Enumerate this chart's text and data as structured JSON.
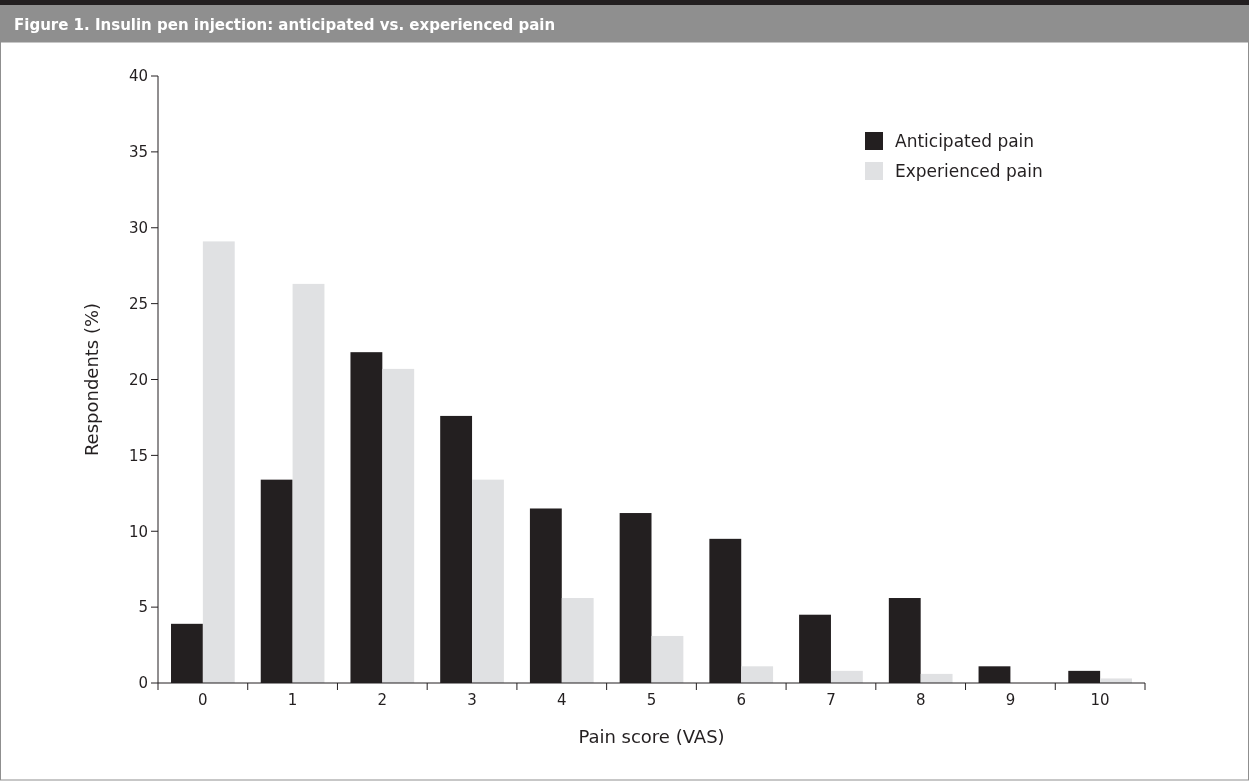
{
  "chart_data": {
    "type": "bar",
    "title": "Figure 1. Insulin pen injection: anticipated vs. experienced pain",
    "xlabel": "Pain score (VAS)",
    "ylabel": "Respondents (%)",
    "categories": [
      "0",
      "1",
      "2",
      "3",
      "4",
      "5",
      "6",
      "7",
      "8",
      "9",
      "10"
    ],
    "series": [
      {
        "name": "Anticipated pain",
        "color": "#231f20",
        "values": [
          3.9,
          13.4,
          21.8,
          17.6,
          11.5,
          11.2,
          9.5,
          4.5,
          5.6,
          1.1,
          0.8
        ]
      },
      {
        "name": "Experienced pain",
        "color": "#e0e1e3",
        "values": [
          29.1,
          26.3,
          20.7,
          13.4,
          5.6,
          3.1,
          1.1,
          0.8,
          0.6,
          0,
          0.3
        ]
      }
    ],
    "ylim": [
      0,
      40
    ],
    "yticks": [
      0,
      5,
      10,
      15,
      20,
      25,
      30,
      35,
      40
    ],
    "grid": false,
    "legend": "top right"
  }
}
